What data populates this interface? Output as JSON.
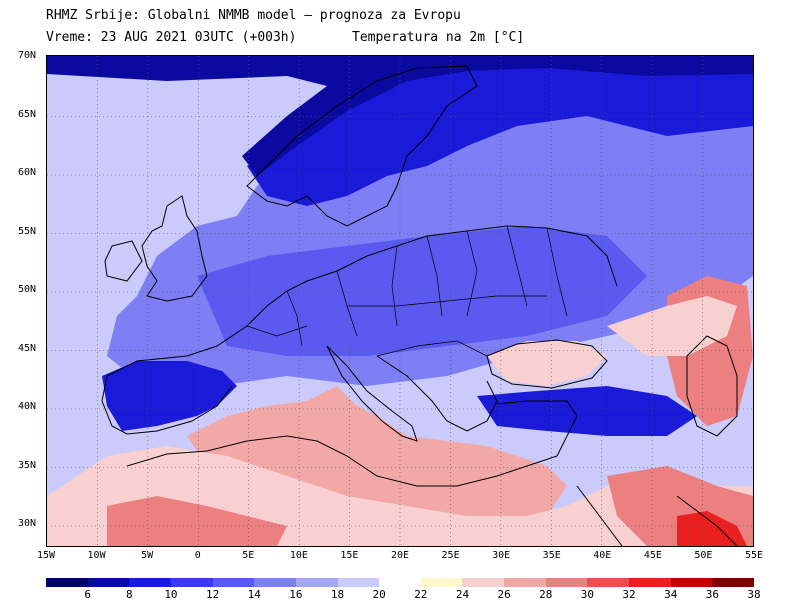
{
  "header": {
    "line1": "RHMZ Srbije: Globalni NMMB model – prognoza za Evropu",
    "line2": "Vreme: 23 AUG 2021 03UTC (+003h)",
    "variable": "Temperatura na 2m [°C]"
  },
  "lat_labels": [
    "70N",
    "65N",
    "60N",
    "55N",
    "50N",
    "45N",
    "40N",
    "35N",
    "30N"
  ],
  "lon_labels": [
    "15W",
    "10W",
    "5W",
    "0",
    "5E",
    "10E",
    "15E",
    "20E",
    "25E",
    "30E",
    "35E",
    "40E",
    "45E",
    "50E",
    "55E"
  ],
  "legend": {
    "labels": [
      "6",
      "8",
      "10",
      "12",
      "14",
      "16",
      "18",
      "20",
      "22",
      "24",
      "26",
      "28",
      "30",
      "32",
      "34",
      "36",
      "38"
    ],
    "colors": [
      "#000070",
      "#0a0aa0",
      "#1a1ad8",
      "#3a3ae8",
      "#5a5af0",
      "#7e7ef5",
      "#a6a6f8",
      "#cacafb",
      "#ffffff",
      "#fffacd",
      "#f9d0d0",
      "#f3a8a8",
      "#ec8080",
      "#e85050",
      "#e82020",
      "#c00000",
      "#800000"
    ]
  },
  "map_colors": {
    "ocean": "#cacafb",
    "land_cool": "#5a5af0",
    "land_mid": "#7e7ef5",
    "north": "#1a1ad8",
    "arctic": "#0a0aa0",
    "med": "#f3a8a8",
    "warm": "#f9d0d0",
    "hot": "#ec8080",
    "hottest": "#e82020",
    "borders": "#000000"
  }
}
